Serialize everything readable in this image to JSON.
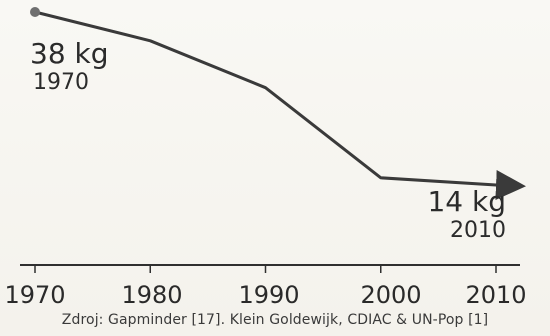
{
  "chart_data": {
    "type": "line",
    "x": [
      1970,
      1980,
      1990,
      2000,
      2010
    ],
    "y": [
      38,
      34,
      27.5,
      15,
      14
    ],
    "unit": "kg",
    "xlim": [
      1970,
      2010
    ],
    "ylim": [
      10,
      40
    ],
    "annotations": {
      "start": {
        "value": "38 kg",
        "year": "1970"
      },
      "end": {
        "value": "14 kg",
        "year": "2010"
      }
    },
    "x_tick_labels": [
      "1970",
      "1980",
      "1990",
      "2000",
      "2010"
    ],
    "source": "Zdroj: Gapminder [17]. Klein Goldewijk, CDIAC & UN-Pop [1]",
    "grid": false,
    "legend": "none",
    "line_color": "#3a3a3a",
    "marker_color": "#6f6f6f"
  }
}
